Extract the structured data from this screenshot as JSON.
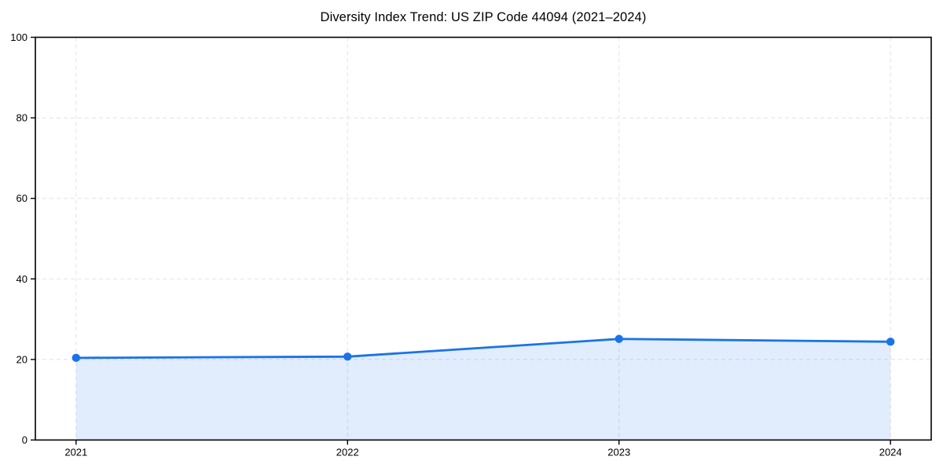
{
  "title": "Diversity Index Trend: US ZIP Code 44094 (2021–2024)",
  "colors": {
    "line": "#1a73e8",
    "marker": "#1a73e8",
    "area_fill": "rgba(26,115,232,0.13)",
    "grid": "#e1e1e1",
    "axis": "#000000",
    "text": "#000000",
    "background": "#ffffff"
  },
  "chart_data": {
    "type": "area",
    "title": "Diversity Index Trend: US ZIP Code 44094 (2021–2024)",
    "categories": [
      "2021",
      "2022",
      "2023",
      "2024"
    ],
    "series": [
      {
        "name": "Diversity Index",
        "values": [
          20.4,
          20.7,
          25.1,
          24.4
        ]
      }
    ],
    "xlabel": "",
    "ylabel": "",
    "ylim": [
      0,
      100
    ],
    "yticks": [
      0,
      20,
      40,
      60,
      80,
      100
    ],
    "grid": true,
    "grid_style": "dashed",
    "legend": false,
    "marker": "circle",
    "frame": "box"
  }
}
